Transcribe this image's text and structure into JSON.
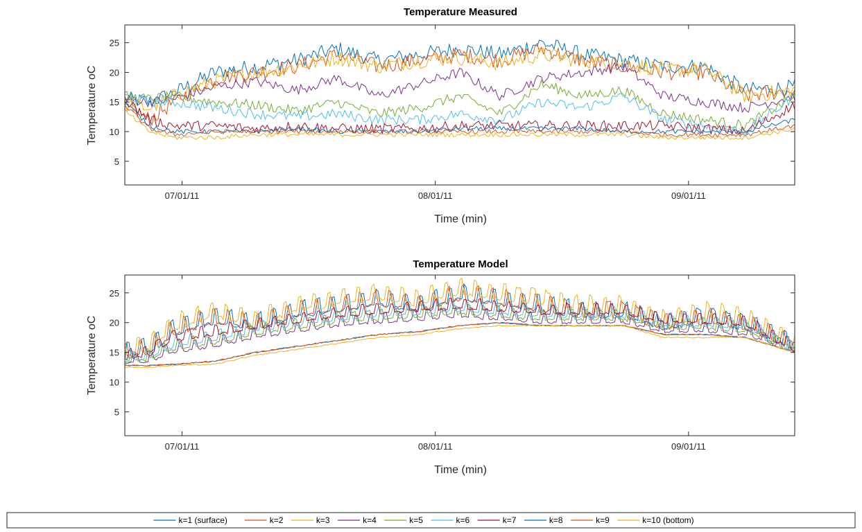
{
  "chart_data": [
    {
      "type": "line",
      "title": "Temperature Measured",
      "xlabel": "Time (min)",
      "ylabel": "Temperature oC",
      "x_axis": "date",
      "xlim": [
        "2011-06-24",
        "2011-09-14"
      ],
      "ylim": [
        1,
        28
      ],
      "x_ticks": [
        "07/01/11",
        "08/01/11",
        "09/01/11"
      ],
      "y_ticks": [
        5,
        10,
        15,
        20,
        25
      ],
      "grid": false,
      "x_dates": [
        "2011-06-24",
        "2011-06-27",
        "2011-06-30",
        "2011-07-05",
        "2011-07-10",
        "2011-07-15",
        "2011-07-20",
        "2011-07-25",
        "2011-07-30",
        "2011-08-04",
        "2011-08-09",
        "2011-08-14",
        "2011-08-19",
        "2011-08-24",
        "2011-08-29",
        "2011-09-03",
        "2011-09-08",
        "2011-09-14"
      ],
      "series": [
        {
          "name": "k=1 (surface)",
          "color": "#0072BD",
          "values": [
            15.5,
            15,
            16.5,
            20,
            21,
            22,
            24,
            22,
            23,
            24,
            23,
            25,
            23,
            22,
            21,
            21,
            17,
            17.5
          ]
        },
        {
          "name": "k=2",
          "color": "#D95319",
          "values": [
            15,
            12,
            15,
            19,
            20,
            21,
            23,
            21,
            22,
            23,
            22,
            24,
            22,
            21,
            20,
            20,
            16,
            17
          ]
        },
        {
          "name": "k=3",
          "color": "#EDB120",
          "values": [
            14.5,
            14,
            16,
            18.5,
            20,
            21,
            22.5,
            21,
            22,
            22.5,
            21.5,
            23,
            22,
            21.5,
            20.5,
            20.5,
            16,
            17
          ]
        },
        {
          "name": "k=4",
          "color": "#7E2F8E",
          "values": [
            15.5,
            15,
            15.5,
            17.5,
            18.5,
            17,
            19,
            16,
            18,
            20,
            16,
            19,
            20,
            21,
            16,
            15,
            14,
            16
          ]
        },
        {
          "name": "k=5",
          "color": "#77AC30",
          "values": [
            16,
            15.5,
            16,
            15,
            14.5,
            13.5,
            15,
            13,
            14,
            16,
            13,
            18,
            16,
            17,
            13,
            12,
            11,
            16
          ]
        },
        {
          "name": "k=6",
          "color": "#4DBEEE",
          "values": [
            16,
            15,
            15,
            14,
            13,
            12.5,
            13,
            12,
            12,
            13,
            12,
            15,
            14,
            16,
            12,
            11,
            10,
            16
          ]
        },
        {
          "name": "k=7",
          "color": "#A2142F",
          "values": [
            15.5,
            12,
            11,
            11,
            10.5,
            11,
            10.5,
            10.5,
            10.5,
            11,
            11,
            11,
            11,
            11,
            11,
            10.5,
            10,
            14.5
          ]
        },
        {
          "name": "k=8",
          "color": "#0072BD",
          "values": [
            15,
            11,
            10,
            10,
            10,
            10.5,
            10,
            10,
            10,
            10.5,
            10.5,
            10.5,
            10.5,
            10,
            10,
            10,
            10,
            12
          ]
        },
        {
          "name": "k=9",
          "color": "#D95319",
          "values": [
            14.5,
            10.5,
            9.5,
            10,
            10,
            10,
            10,
            10,
            10,
            10,
            10,
            10,
            10,
            10,
            9.5,
            9.5,
            9.5,
            11
          ]
        },
        {
          "name": "k=10 (bottom)",
          "color": "#EDB120",
          "values": [
            13.5,
            10,
            9,
            9,
            9.5,
            9.5,
            9.5,
            9.5,
            9.5,
            9.5,
            9.5,
            9.5,
            9.5,
            9.5,
            9,
            9,
            9,
            10.5
          ]
        }
      ]
    },
    {
      "type": "line",
      "title": "Temperature Model",
      "xlabel": "Time (min)",
      "ylabel": "Temperature oC",
      "x_axis": "date",
      "xlim": [
        "2011-06-24",
        "2011-09-14"
      ],
      "ylim": [
        1,
        28
      ],
      "x_ticks": [
        "07/01/11",
        "08/01/11",
        "09/01/11"
      ],
      "y_ticks": [
        5,
        10,
        15,
        20,
        25
      ],
      "grid": false,
      "x_dates": [
        "2011-06-24",
        "2011-06-27",
        "2011-06-30",
        "2011-07-05",
        "2011-07-10",
        "2011-07-15",
        "2011-07-20",
        "2011-07-25",
        "2011-07-30",
        "2011-08-04",
        "2011-08-09",
        "2011-08-14",
        "2011-08-19",
        "2011-08-24",
        "2011-08-29",
        "2011-09-03",
        "2011-09-08",
        "2011-09-14"
      ],
      "series": [
        {
          "name": "k=1 (surface)",
          "color": "#0072BD",
          "values": [
            14,
            15,
            18,
            20,
            19,
            21,
            22,
            23,
            22,
            24,
            23,
            22,
            21,
            21,
            19,
            20,
            19,
            15.5
          ]
        },
        {
          "name": "k=2",
          "color": "#D95319",
          "values": [
            14,
            15,
            18,
            20,
            19,
            21,
            22,
            23,
            22,
            24,
            23,
            22,
            21,
            21,
            19,
            20,
            19,
            15.5
          ]
        },
        {
          "name": "k=3",
          "color": "#EDB120",
          "values": [
            14.5,
            15.5,
            19,
            21,
            19.5,
            22,
            23,
            24,
            23,
            25,
            24,
            23,
            22,
            22,
            19.5,
            21,
            20,
            15.5
          ]
        },
        {
          "name": "k=4",
          "color": "#7E2F8E",
          "values": [
            13,
            13.5,
            15,
            16,
            17.5,
            18.5,
            19.5,
            20,
            20.5,
            21,
            20.5,
            20,
            20,
            20,
            18.5,
            18.5,
            18,
            15
          ]
        },
        {
          "name": "k=5",
          "color": "#77AC30",
          "values": [
            13.2,
            13.8,
            15.5,
            16.5,
            18,
            19,
            20,
            20.5,
            21,
            21.5,
            21,
            20.5,
            20.5,
            20.5,
            19,
            19,
            18.5,
            15
          ]
        },
        {
          "name": "k=6",
          "color": "#4DBEEE",
          "values": [
            13.5,
            14,
            16,
            17,
            18.5,
            19.5,
            20.5,
            21,
            21.5,
            22,
            21.5,
            21,
            21,
            21,
            19.5,
            19.5,
            19,
            15.2
          ]
        },
        {
          "name": "k=7",
          "color": "#A2142F",
          "values": [
            13.8,
            14.5,
            17,
            18,
            19,
            20,
            21,
            21.5,
            22,
            22.5,
            22,
            21.5,
            21.5,
            21.5,
            20,
            20,
            19.5,
            15.3
          ]
        },
        {
          "name": "k=8",
          "color": "#0072BD",
          "values": [
            12.8,
            12.8,
            13,
            13.5,
            15,
            16,
            17,
            18,
            18.5,
            19.5,
            20,
            19.5,
            19.5,
            19.5,
            18,
            18,
            17.5,
            15
          ]
        },
        {
          "name": "k=9",
          "color": "#D95319",
          "values": [
            12.8,
            12.8,
            13,
            13.5,
            15,
            16,
            17,
            18,
            18.5,
            19.5,
            20,
            19.5,
            19.5,
            19.5,
            18,
            18,
            17.5,
            15
          ]
        },
        {
          "name": "k=10 (bottom)",
          "color": "#EDB120",
          "values": [
            12.5,
            12.5,
            12.8,
            13,
            14.5,
            15.5,
            16.5,
            17.5,
            18,
            19,
            19.5,
            19.5,
            19.5,
            19.5,
            17.5,
            17.5,
            17.5,
            15
          ]
        }
      ]
    }
  ],
  "legend": {
    "placement": "bottom",
    "entries": [
      {
        "label": "k=1 (surface)",
        "color": "#0072BD"
      },
      {
        "label": "k=2",
        "color": "#D95319"
      },
      {
        "label": "k=3",
        "color": "#EDB120"
      },
      {
        "label": "k=4",
        "color": "#7E2F8E"
      },
      {
        "label": "k=5",
        "color": "#77AC30"
      },
      {
        "label": "k=6",
        "color": "#4DBEEE"
      },
      {
        "label": "k=7",
        "color": "#A2142F"
      },
      {
        "label": "k=8",
        "color": "#0072BD"
      },
      {
        "label": "k=9",
        "color": "#D95319"
      },
      {
        "label": "k=10 (bottom)",
        "color": "#EDB120"
      }
    ]
  }
}
